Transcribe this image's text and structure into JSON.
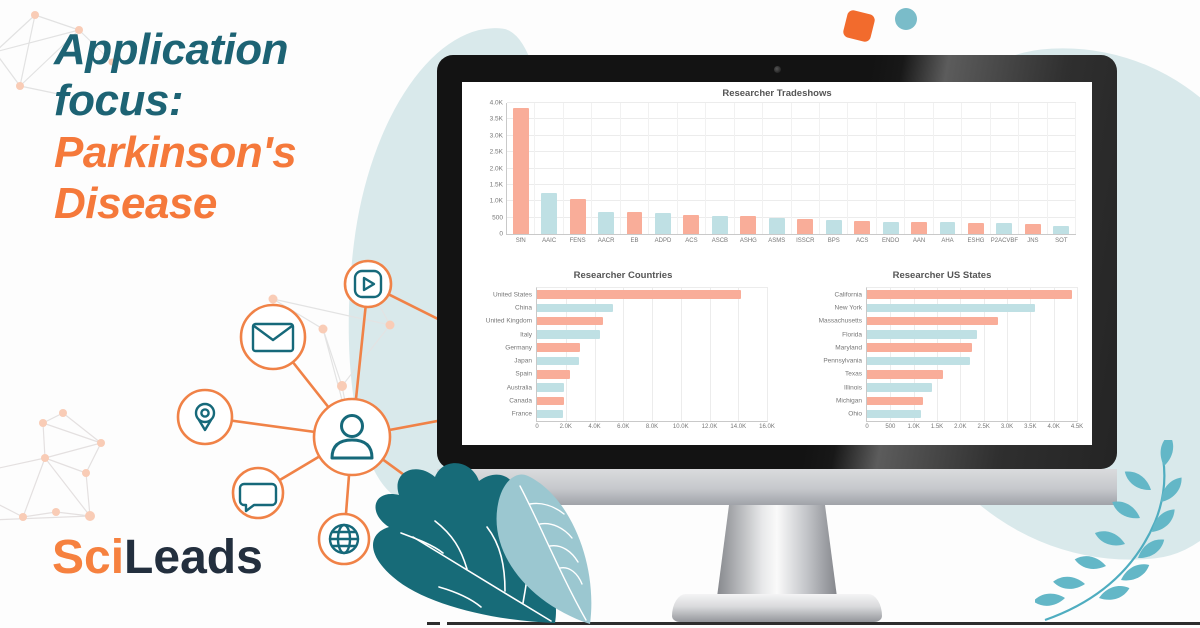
{
  "headline": {
    "line1": "Application focus:",
    "line2": "Parkinson's Disease"
  },
  "logo": {
    "sci": "Sci",
    "leads": "Leads"
  },
  "colors": {
    "teal_headline": "#1d6374",
    "orange_accent": "#f5793b",
    "bar_salmon": "#f9ad99",
    "bar_blue": "#bfe0e4",
    "blob_light_blue": "#d9e9eb",
    "hub_line_orange": "#f08247",
    "icon_teal": "#16697a",
    "leaf_dark": "#176b78",
    "leaf_light": "#9bc7d0",
    "branch_teal": "#63b7c7",
    "logo_dark": "#232f3e"
  },
  "hub": {
    "center_icon": "person",
    "satellite_icons": [
      "play",
      "mail",
      "location-pin",
      "chat",
      "globe"
    ]
  },
  "chart_data": [
    {
      "type": "bar",
      "orientation": "vertical",
      "title": "Researcher Tradeshows",
      "categories": [
        "SfN",
        "AAIC",
        "FENS",
        "AACR",
        "EB",
        "ADPD",
        "ACS",
        "ASCB",
        "ASHG",
        "ASMS",
        "ISSCR",
        "BPS",
        "ACS",
        "ENDO",
        "AAN",
        "AHA",
        "ESHG",
        "P2ACVBF",
        "JNS",
        "SOT"
      ],
      "values": [
        3850,
        1250,
        1080,
        680,
        660,
        640,
        590,
        560,
        550,
        500,
        460,
        440,
        410,
        380,
        360,
        355,
        340,
        330,
        320,
        260
      ],
      "bar_colors": [
        "#f9ad99",
        "#bfe0e4"
      ],
      "axis_max": 4000,
      "ticks": [
        {
          "label": "0",
          "v": 0
        },
        {
          "label": "500",
          "v": 500
        },
        {
          "label": "1.0K",
          "v": 1000
        },
        {
          "label": "1.5K",
          "v": 1500
        },
        {
          "label": "2.0K",
          "v": 2000
        },
        {
          "label": "2.5K",
          "v": 2500
        },
        {
          "label": "3.0K",
          "v": 3000
        },
        {
          "label": "3.5K",
          "v": 3500
        },
        {
          "label": "4.0K",
          "v": 4000
        }
      ],
      "grid": true,
      "legend": false
    },
    {
      "type": "bar",
      "orientation": "horizontal",
      "title": "Researcher Countries",
      "categories": [
        "United States",
        "China",
        "United Kingdom",
        "Italy",
        "Germany",
        "Japan",
        "Spain",
        "Australia",
        "Canada",
        "France"
      ],
      "values": [
        14200,
        5300,
        4600,
        4400,
        3000,
        2900,
        2300,
        1900,
        1900,
        1800
      ],
      "bar_colors": [
        "#f9ad99",
        "#bfe0e4"
      ],
      "axis_max": 16000,
      "ticks": [
        {
          "label": "0",
          "v": 0
        },
        {
          "label": "2.0K",
          "v": 2000
        },
        {
          "label": "4.0K",
          "v": 4000
        },
        {
          "label": "6.0K",
          "v": 6000
        },
        {
          "label": "8.0K",
          "v": 8000
        },
        {
          "label": "10.0K",
          "v": 10000
        },
        {
          "label": "12.0K",
          "v": 12000
        },
        {
          "label": "14.0K",
          "v": 14000
        },
        {
          "label": "16.0K",
          "v": 16000
        }
      ],
      "grid": true,
      "legend": false
    },
    {
      "type": "bar",
      "orientation": "horizontal",
      "title": "Researcher US States",
      "categories": [
        "California",
        "New York",
        "Massachusetts",
        "Florida",
        "Maryland",
        "Pennsylvania",
        "Texas",
        "Illinois",
        "Michigan",
        "Ohio"
      ],
      "values": [
        4400,
        3600,
        2800,
        2350,
        2250,
        2200,
        1620,
        1400,
        1200,
        1150
      ],
      "bar_colors": [
        "#f9ad99",
        "#bfe0e4"
      ],
      "axis_max": 4500,
      "ticks": [
        {
          "label": "0",
          "v": 0
        },
        {
          "label": "500",
          "v": 500
        },
        {
          "label": "1.0K",
          "v": 1000
        },
        {
          "label": "1.5K",
          "v": 1500
        },
        {
          "label": "2.0K",
          "v": 2000
        },
        {
          "label": "2.5K",
          "v": 2500
        },
        {
          "label": "3.0K",
          "v": 3000
        },
        {
          "label": "3.5K",
          "v": 3500
        },
        {
          "label": "4.0K",
          "v": 4000
        },
        {
          "label": "4.5K",
          "v": 4500
        }
      ],
      "grid": true,
      "legend": false
    }
  ]
}
